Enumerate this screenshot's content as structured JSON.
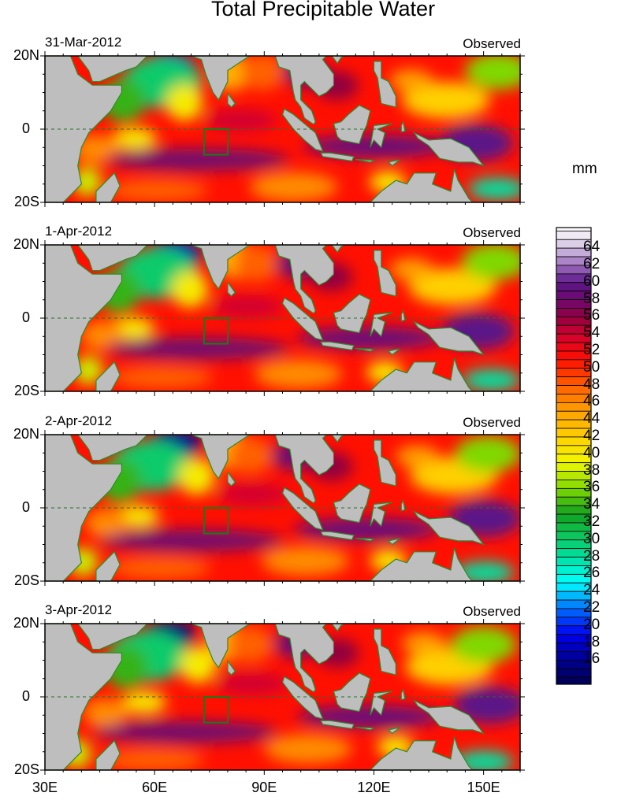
{
  "title": "Total Precipitable Water",
  "panels": [
    {
      "date": "31-Mar-2012",
      "label": "Observed"
    },
    {
      "date": "1-Apr-2012",
      "label": "Observed"
    },
    {
      "date": "2-Apr-2012",
      "label": "Observed"
    },
    {
      "date": "3-Apr-2012",
      "label": "Observed"
    }
  ],
  "y_ticks": [
    "20N",
    "0",
    "20S"
  ],
  "x_ticks": [
    "30E",
    "60E",
    "90E",
    "120E",
    "150E"
  ],
  "colorbar": {
    "units": "mm",
    "labels": [
      "64",
      "62",
      "60",
      "58",
      "56",
      "54",
      "52",
      "50",
      "48",
      "46",
      "44",
      "42",
      "40",
      "38",
      "36",
      "34",
      "32",
      "30",
      "28",
      "26",
      "24",
      "22",
      "20",
      "18",
      "16"
    ],
    "stops": [
      [
        13,
        "#000050"
      ],
      [
        16,
        "#000090"
      ],
      [
        19,
        "#0000f0"
      ],
      [
        22,
        "#0070ff"
      ],
      [
        25,
        "#00ffff"
      ],
      [
        28,
        "#00e0a0"
      ],
      [
        31,
        "#10c050"
      ],
      [
        33,
        "#10a020"
      ],
      [
        36,
        "#80d800"
      ],
      [
        39,
        "#f0f800"
      ],
      [
        42,
        "#ffd000"
      ],
      [
        45,
        "#ffa000"
      ],
      [
        48,
        "#ff6000"
      ],
      [
        51,
        "#ff1000"
      ],
      [
        54,
        "#d00030"
      ],
      [
        56,
        "#900040"
      ],
      [
        58,
        "#700870"
      ],
      [
        60,
        "#5a1888"
      ],
      [
        62,
        "#a070c0"
      ],
      [
        64,
        "#d0c0e0"
      ],
      [
        66,
        "#faf8fc"
      ]
    ]
  }
}
